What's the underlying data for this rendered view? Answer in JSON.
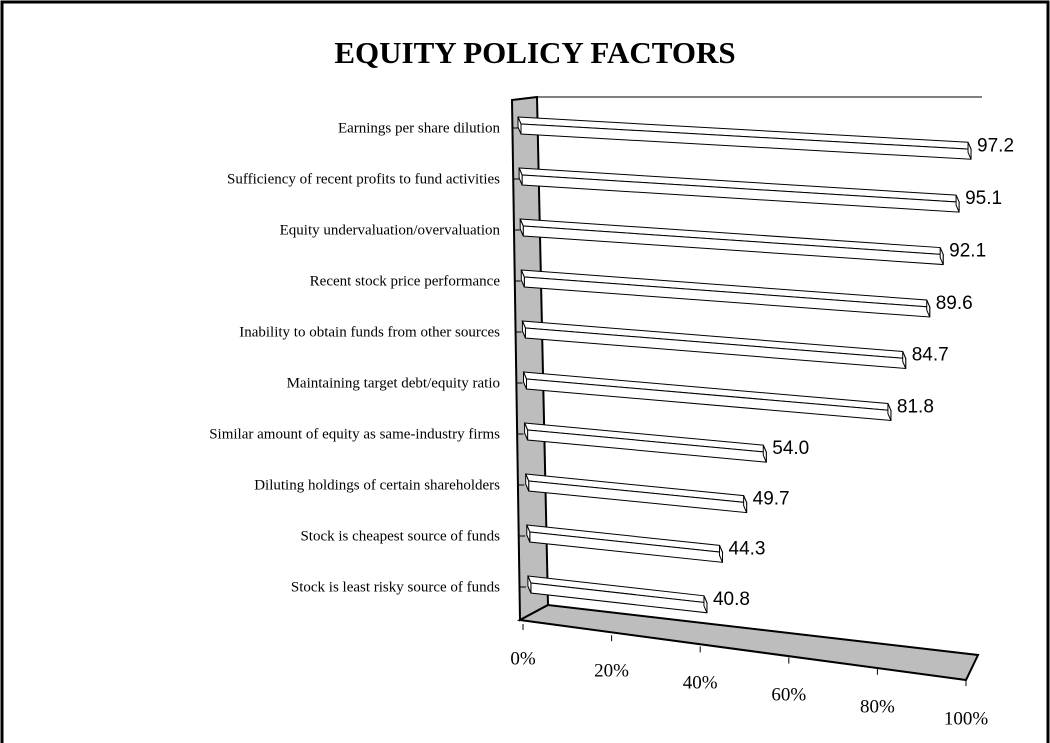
{
  "chart_data": {
    "type": "bar",
    "title": "EQUITY POLICY FACTORS",
    "categories": [
      "Earnings per share dilution",
      "Sufficiency of recent profits to fund activities",
      "Equity undervaluation/overvaluation",
      "Recent stock price performance",
      "Inability to obtain funds from  other sources",
      "Maintaining target debt/equity ratio",
      "Similar amount of equity as same-industry firms",
      "Diluting holdings of certain shareholders",
      "Stock is cheapest source of funds",
      "Stock is least risky source of funds"
    ],
    "values": [
      97.2,
      95.1,
      92.1,
      89.6,
      84.7,
      81.8,
      54.0,
      49.7,
      44.3,
      40.8
    ],
    "value_labels": [
      "97.2",
      "95.1",
      "92.1",
      "89.6",
      "84.7",
      "81.8",
      "54.0",
      "49.7",
      "44.3",
      "40.8"
    ],
    "color": "#ffffff",
    "xlim": [
      0,
      100
    ],
    "xticks": [
      {
        "value": 0,
        "label": "0%"
      },
      {
        "value": 20,
        "label": "20%"
      },
      {
        "value": 40,
        "label": "40%"
      },
      {
        "value": 60,
        "label": "60%"
      },
      {
        "value": 80,
        "label": "80%"
      },
      {
        "value": 100,
        "label": "100%"
      }
    ]
  }
}
